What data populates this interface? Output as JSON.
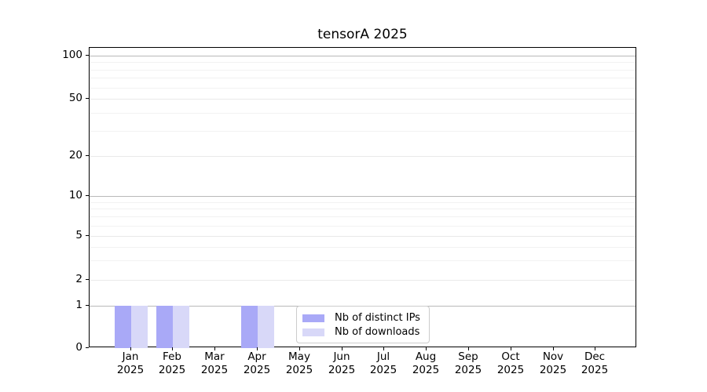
{
  "chart_data": {
    "type": "bar",
    "title": "tensorA 2025",
    "xlabel": "",
    "ylabel": "",
    "categories": [
      "Jan",
      "Feb",
      "Mar",
      "Apr",
      "May",
      "Jun",
      "Jul",
      "Aug",
      "Sep",
      "Oct",
      "Nov",
      "Dec"
    ],
    "x_year_label": "2025",
    "series": [
      {
        "name": "Nb of distinct IPs",
        "color": "#a9a9f7",
        "values": [
          1,
          1,
          0,
          1,
          0,
          0,
          0,
          0,
          0,
          0,
          0,
          0
        ]
      },
      {
        "name": "Nb of downloads",
        "color": "#d8d8f8",
        "values": [
          1,
          1,
          0,
          1,
          0,
          0,
          0,
          0,
          0,
          0,
          0,
          0
        ]
      }
    ],
    "y_axis": {
      "scale": "symlog",
      "major_ticks": [
        0,
        1,
        2,
        5,
        10,
        20,
        50,
        100
      ],
      "minor_ticks": [
        3,
        4,
        6,
        7,
        8,
        9,
        30,
        40,
        60,
        70,
        80,
        90
      ],
      "ylim": [
        0,
        113
      ]
    },
    "grid": true,
    "legend_position": "lower center",
    "colors": {
      "grid_strong": "#b9b9b9",
      "grid_major": "#e9e9e9",
      "grid_minor": "#f2f2f2",
      "axis": "#000000",
      "background": "#ffffff"
    }
  }
}
